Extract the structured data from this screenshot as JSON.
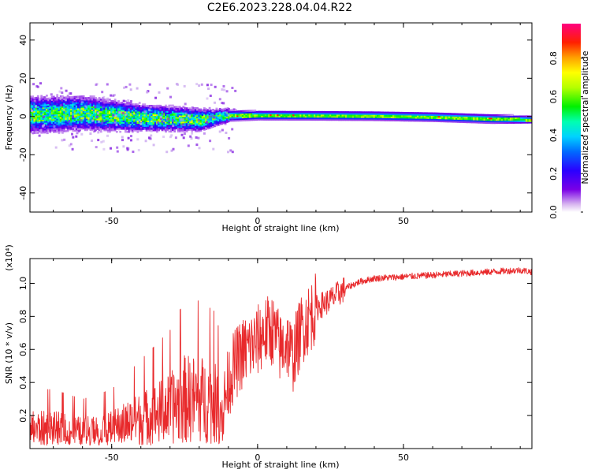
{
  "title": "C2E6.2023.228.04.04.R22",
  "colors": {
    "axes": "#000000",
    "snr_line": "#e8292b",
    "background": "#ffffff"
  },
  "chart_data": [
    {
      "type": "heatmap",
      "name": "spectrogram",
      "xlabel": "Height of straight line (km)",
      "ylabel": "Frequency (Hz)",
      "xlim": [
        -78,
        94
      ],
      "ylim": [
        -50,
        49
      ],
      "xticks": [
        -50,
        0,
        50
      ],
      "yticks": [
        -40,
        -20,
        0,
        20,
        40
      ],
      "xtick_labels": [
        "-50",
        "0",
        "50"
      ],
      "ytick_labels": [
        "-40",
        "-20",
        "0",
        "20",
        "40"
      ],
      "colormap": "rainbow (purple to red)",
      "description_of_pattern": "broad noisy band about 0 Hz, width ±10 Hz for heights below -10 km, narrow continuous band centered near 0 Hz above, drifting to about -2 Hz near 90 km",
      "ridge": {
        "height_km": [
          -78,
          -60,
          -40,
          -20,
          -10,
          0,
          20,
          40,
          60,
          80,
          94
        ],
        "center_hz": [
          0.5,
          1.5,
          -1,
          -2,
          0.2,
          0.3,
          0.2,
          0,
          -0.5,
          -1.5,
          -2
        ],
        "half_width_hz": [
          8,
          7.5,
          6,
          5,
          3,
          2.5,
          2.5,
          2.5,
          2.5,
          2.5,
          2
        ]
      }
    },
    {
      "type": "colorbar",
      "name": "normalized-amplitude-colorbar",
      "label": "Normalized spectral amplitude",
      "range": [
        0,
        0.98
      ],
      "ticks": [
        0.0,
        0.2,
        0.4,
        0.6,
        0.8
      ],
      "tick_labels": [
        "0.0",
        "0.2",
        "0.4",
        "0.6",
        "0.8"
      ]
    },
    {
      "type": "line",
      "name": "snr-profile",
      "xlabel": "Height of straight line (km)",
      "ylabel": "SNR (10 * v/v)",
      "scale_label": "(x10⁴)",
      "xlim": [
        -78,
        94
      ],
      "ylim": [
        0.0,
        1.15
      ],
      "xticks": [
        -50,
        0,
        50
      ],
      "yticks": [
        0.2,
        0.4,
        0.6,
        0.8,
        1.0
      ],
      "xtick_labels": [
        "-50",
        "0",
        "50"
      ],
      "ytick_labels": [
        "0.2",
        "0.4",
        "0.6",
        "0.8",
        "1.0"
      ],
      "series": [
        {
          "name": "SNR",
          "x": [
            -78,
            -70,
            -60,
            -50,
            -40,
            -30,
            -25,
            -20,
            -15,
            -12,
            -10,
            -8,
            -5,
            -2,
            0,
            2,
            5,
            8,
            10,
            12,
            15,
            18,
            20,
            25,
            30,
            35,
            40,
            50,
            60,
            70,
            80,
            90,
            94
          ],
          "values": [
            0.12,
            0.12,
            0.1,
            0.12,
            0.18,
            0.24,
            0.3,
            0.3,
            0.28,
            0.22,
            0.4,
            0.5,
            0.58,
            0.62,
            0.65,
            0.7,
            0.72,
            0.6,
            0.65,
            0.55,
            0.72,
            0.8,
            0.85,
            0.9,
            0.97,
            1.01,
            1.03,
            1.04,
            1.05,
            1.06,
            1.07,
            1.08,
            1.07
          ]
        }
      ]
    }
  ]
}
